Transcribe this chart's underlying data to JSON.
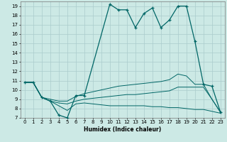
{
  "xlabel": "Humidex (Indice chaleur)",
  "bg_color": "#cce9e5",
  "grid_color": "#aacccc",
  "line_color": "#006666",
  "xlim": [
    -0.5,
    23.5
  ],
  "ylim": [
    7,
    19.5
  ],
  "xticks": [
    0,
    1,
    2,
    3,
    4,
    5,
    6,
    7,
    8,
    9,
    10,
    11,
    12,
    13,
    14,
    15,
    16,
    17,
    18,
    19,
    20,
    21,
    22,
    23
  ],
  "yticks": [
    7,
    8,
    9,
    10,
    11,
    12,
    13,
    14,
    15,
    16,
    17,
    18,
    19
  ],
  "main_x": [
    0,
    1,
    2,
    3,
    4,
    5,
    6,
    7,
    10,
    11,
    12,
    13,
    14,
    15,
    16,
    17,
    18,
    19,
    20,
    21,
    22,
    23
  ],
  "main_y": [
    10.8,
    10.8,
    9.2,
    8.8,
    7.3,
    7.0,
    9.4,
    9.4,
    19.2,
    18.6,
    18.6,
    16.7,
    18.2,
    18.8,
    16.7,
    17.5,
    19.0,
    19.0,
    15.2,
    10.6,
    10.4,
    7.6
  ],
  "line1_x": [
    0,
    1,
    2,
    3,
    4,
    5,
    6,
    7,
    8,
    9,
    10,
    11,
    12,
    13,
    14,
    15,
    16,
    17,
    18,
    19,
    20,
    21,
    22,
    23
  ],
  "line1_y": [
    10.8,
    10.8,
    9.2,
    9.0,
    8.8,
    8.8,
    9.3,
    9.6,
    9.8,
    10.0,
    10.2,
    10.4,
    10.5,
    10.6,
    10.7,
    10.8,
    10.9,
    11.1,
    11.7,
    11.5,
    10.6,
    10.6,
    9.0,
    7.6
  ],
  "line2_x": [
    0,
    1,
    2,
    3,
    4,
    5,
    6,
    7,
    8,
    9,
    10,
    11,
    12,
    13,
    14,
    15,
    16,
    17,
    18,
    19,
    20,
    21,
    22,
    23
  ],
  "line2_y": [
    10.8,
    10.8,
    9.2,
    8.8,
    8.6,
    8.5,
    8.8,
    9.0,
    9.1,
    9.2,
    9.3,
    9.4,
    9.5,
    9.5,
    9.6,
    9.7,
    9.8,
    9.9,
    10.3,
    10.3,
    10.3,
    10.3,
    9.0,
    7.6
  ],
  "line3_x": [
    0,
    1,
    2,
    3,
    4,
    5,
    6,
    7,
    8,
    9,
    10,
    11,
    12,
    13,
    14,
    15,
    16,
    17,
    18,
    19,
    20,
    21,
    22,
    23
  ],
  "line3_y": [
    10.8,
    10.8,
    9.2,
    8.8,
    8.3,
    7.8,
    8.5,
    8.6,
    8.5,
    8.4,
    8.3,
    8.3,
    8.3,
    8.3,
    8.3,
    8.2,
    8.2,
    8.1,
    8.1,
    8.0,
    7.9,
    7.9,
    7.7,
    7.5
  ]
}
